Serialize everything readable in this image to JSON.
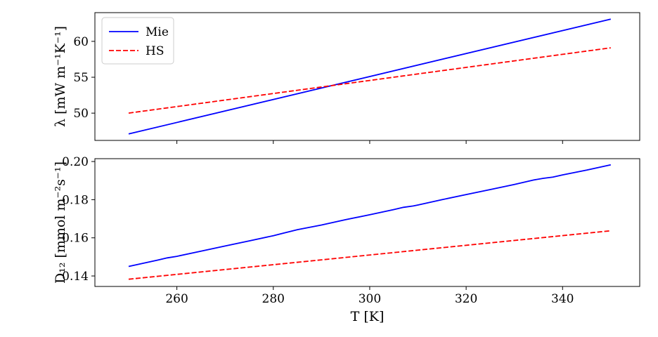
{
  "chart_data": [
    {
      "type": "line",
      "ylabel": "λ [mW m⁻¹K⁻¹]",
      "xlabel": "",
      "xlim": [
        243,
        356
      ],
      "ylim": [
        46.2,
        64.0
      ],
      "yticks": [
        50,
        55,
        60
      ],
      "xticks": [
        260,
        280,
        300,
        320,
        340
      ],
      "show_xtick_labels": false,
      "legend": {
        "placement": "top-left",
        "entries": [
          "Mie",
          "HS"
        ]
      },
      "series": [
        {
          "name": "Mie",
          "color": "#0000ff",
          "dash": "solid",
          "x": [
            250,
            350
          ],
          "y": [
            47.1,
            63.1
          ]
        },
        {
          "name": "HS",
          "color": "#ff0000",
          "dash": "dashed",
          "x": [
            250,
            350
          ],
          "y": [
            50.0,
            59.1
          ]
        }
      ]
    },
    {
      "type": "line",
      "ylabel": "D₁₂ [mmol m⁻²s⁻¹]",
      "xlabel": "T [K]",
      "xlim": [
        243,
        356
      ],
      "ylim": [
        0.1345,
        0.2015
      ],
      "yticks": [
        0.14,
        0.16,
        0.18,
        0.2
      ],
      "ytick_labels": [
        "0.14",
        "0.16",
        "0.18",
        "0.20"
      ],
      "xticks": [
        260,
        280,
        300,
        320,
        340
      ],
      "series": [
        {
          "name": "Mie",
          "color": "#0000ff",
          "dash": "solid",
          "x": [
            250,
            256,
            258,
            260,
            265,
            270,
            275,
            280,
            282,
            285,
            290,
            295,
            300,
            305,
            307,
            309,
            310,
            315,
            320,
            325,
            330,
            334,
            336,
            338,
            340,
            345,
            350
          ],
          "y": [
            0.145,
            0.1483,
            0.1495,
            0.1503,
            0.153,
            0.1557,
            0.1584,
            0.1611,
            0.1624,
            0.1643,
            0.1667,
            0.1695,
            0.1721,
            0.1748,
            0.176,
            0.1767,
            0.1772,
            0.18,
            0.1827,
            0.1853,
            0.188,
            0.1903,
            0.1912,
            0.1918,
            0.193,
            0.1955,
            0.1983
          ]
        },
        {
          "name": "HS",
          "color": "#ff0000",
          "dash": "dashed",
          "x": [
            250,
            350
          ],
          "y": [
            0.1383,
            0.1637
          ]
        }
      ]
    }
  ]
}
